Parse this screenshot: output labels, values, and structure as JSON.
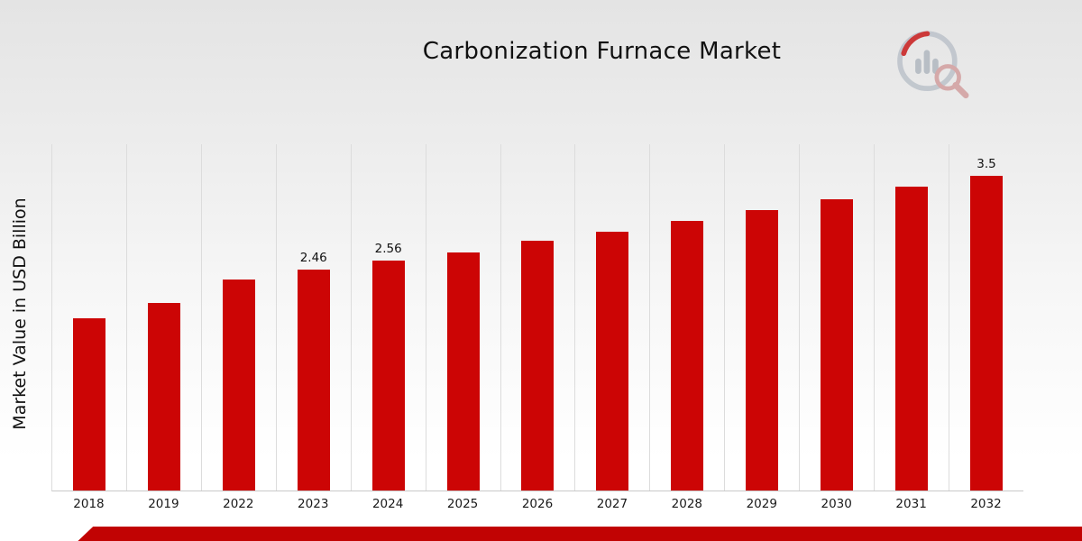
{
  "chart_data": {
    "type": "bar",
    "title": "Carbonization Furnace Market",
    "xlabel": "",
    "ylabel": "Market Value in USD Billion",
    "categories": [
      "2018",
      "2019",
      "2022",
      "2023",
      "2024",
      "2025",
      "2026",
      "2027",
      "2028",
      "2029",
      "2030",
      "2031",
      "2032"
    ],
    "values": [
      1.92,
      2.09,
      2.35,
      2.46,
      2.56,
      2.65,
      2.78,
      2.88,
      3.0,
      3.12,
      3.24,
      3.38,
      3.5
    ],
    "data_labels": [
      "",
      "",
      "",
      "2.46",
      "2.56",
      "",
      "",
      "",
      "",
      "",
      "",
      "",
      "3.5"
    ],
    "ylim": [
      0,
      3.85
    ],
    "grid": "vertical-only",
    "legend": "none",
    "bar_color": "#cc0505",
    "accent_color": "#c10303"
  },
  "branding": {
    "logo_icon": "bar-chart-magnifier-logo"
  }
}
